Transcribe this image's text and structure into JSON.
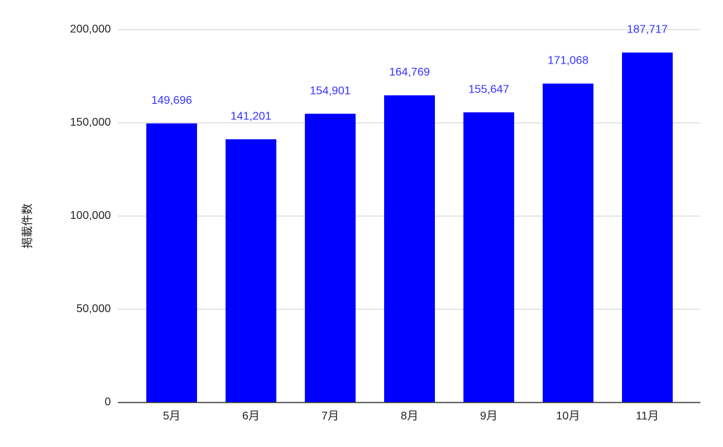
{
  "chart_data": {
    "type": "bar",
    "y_label": "掲載件数",
    "categories": [
      "5月",
      "6月",
      "7月",
      "8月",
      "9月",
      "10月",
      "11月"
    ],
    "values": [
      149696,
      141201,
      154901,
      164769,
      155647,
      171068,
      187717
    ],
    "value_labels": [
      "149,696",
      "141,201",
      "154,901",
      "164,769",
      "155,647",
      "171,068",
      "187,717"
    ],
    "color": "#0000ff",
    "label_color": "#3333ff",
    "ylim": [
      0,
      200000
    ],
    "yticks": [
      0,
      {
        "value": 50000,
        "label": "50,000"
      },
      {
        "value": 100000,
        "label": "100,000"
      },
      {
        "value": 150000,
        "label": "150,000"
      },
      {
        "value": 200000,
        "label": "200,000"
      }
    ],
    "grid": true
  }
}
